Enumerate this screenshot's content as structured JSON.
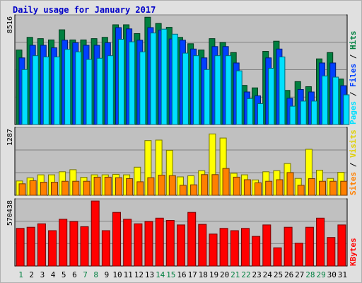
{
  "chart_data": {
    "type": "bar",
    "title": "Daily usage for January 2017",
    "categories": [
      "1",
      "2",
      "3",
      "4",
      "5",
      "6",
      "7",
      "8",
      "9",
      "10",
      "11",
      "12",
      "13",
      "14",
      "15",
      "16",
      "17",
      "18",
      "19",
      "20",
      "21",
      "22",
      "23",
      "24",
      "25",
      "26",
      "27",
      "28",
      "29",
      "30",
      "31"
    ],
    "weekend_days": [
      "1",
      "7",
      "8",
      "14",
      "15",
      "21",
      "22",
      "28",
      "29"
    ],
    "panels": [
      {
        "ymax_label": "8516",
        "ylim": [
          0,
          8516
        ],
        "labels": [
          {
            "text": "Hits",
            "color": "#008040"
          },
          {
            "text": " / ",
            "color": "#000000"
          },
          {
            "text": "Files",
            "color": "#0040ff"
          },
          {
            "text": " / ",
            "color": "#000000"
          },
          {
            "text": "Pages",
            "color": "#00e0ff"
          }
        ],
        "series": [
          {
            "name": "Hits",
            "color": "#008040",
            "values": [
              5900,
              6900,
              6800,
              6700,
              7500,
              6700,
              6700,
              6800,
              6900,
              7900,
              7900,
              7200,
              8500,
              8000,
              7700,
              6900,
              6400,
              5900,
              6800,
              6500,
              5700,
              3100,
              2900,
              5800,
              6600,
              2700,
              3400,
              3000,
              5200,
              5700,
              3600
            ]
          },
          {
            "name": "Files",
            "color": "#0040ff",
            "values": [
              5500,
              6500,
              6500,
              6300,
              6900,
              6700,
              6500,
              6500,
              6700,
              7900,
              7800,
              6900,
              7900,
              7700,
              7000,
              6900,
              6200,
              5500,
              6400,
              6400,
              5100,
              2800,
              2500,
              5500,
              6200,
              2300,
              3000,
              2800,
              5100,
              5100,
              3300
            ]
          },
          {
            "name": "Pages",
            "color": "#00e0ff",
            "values": [
              4800,
              5900,
              5800,
              5800,
              6400,
              6200,
              5600,
              5700,
              5900,
              7200,
              7000,
              6200,
              7700,
              8000,
              7600,
              6100,
              5900,
              4800,
              5900,
              5900,
              4700,
              2500,
              2100,
              4900,
              5800,
              1900,
              2300,
              2300,
              4300,
              4200,
              2800
            ]
          }
        ]
      },
      {
        "ymax_label": "1287",
        "ylim": [
          0,
          1287
        ],
        "labels": [
          {
            "text": "Visits",
            "color": "#e0d000"
          },
          {
            "text": " / ",
            "color": "#000000"
          },
          {
            "text": "Sites",
            "color": "#ff8000"
          }
        ],
        "series": [
          {
            "name": "Visits",
            "color": "#ffff00",
            "values": [
              280,
              340,
              400,
              400,
              460,
              500,
              350,
              400,
              400,
              410,
              400,
              550,
              1070,
              1080,
              880,
              360,
              380,
              480,
              1200,
              1120,
              430,
              400,
              300,
              460,
              480,
              620,
              330,
              900,
              490,
              330,
              450
            ]
          },
          {
            "name": "Sites",
            "color": "#ff8000",
            "values": [
              280,
              340,
              310,
              310,
              330,
              330,
              330,
              410,
              410,
              400,
              380,
              320,
              400,
              450,
              440,
              250,
              260,
              460,
              460,
              580,
              410,
              360,
              300,
              330,
              360,
              500,
              250,
              380,
              330,
              330,
              330
            ]
          }
        ]
      },
      {
        "ymax_label": "570438",
        "ylim": [
          0,
          570438
        ],
        "labels": [
          {
            "text": "KBytes",
            "color": "#ff0000"
          }
        ],
        "series": [
          {
            "name": "KBytes",
            "color": "#ff0000",
            "values": [
              330000,
              340000,
              370000,
              310000,
              410000,
              390000,
              345000,
              570000,
              310000,
              470000,
              410000,
              370000,
              390000,
              420000,
              400000,
              360000,
              470000,
              365000,
              280000,
              330000,
              310000,
              330000,
              260000,
              360000,
              160000,
              340000,
              200000,
              340000,
              420000,
              250000,
              360000
            ]
          }
        ]
      }
    ]
  }
}
